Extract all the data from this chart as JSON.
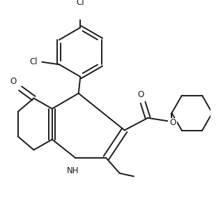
{
  "background_color": "#ffffff",
  "line_color": "#1a1a1a",
  "line_width": 1.4,
  "figsize": [
    3.2,
    2.92
  ],
  "dpi": 100,
  "xlim": [
    0.0,
    3.2
  ],
  "ylim": [
    0.0,
    3.0
  ]
}
